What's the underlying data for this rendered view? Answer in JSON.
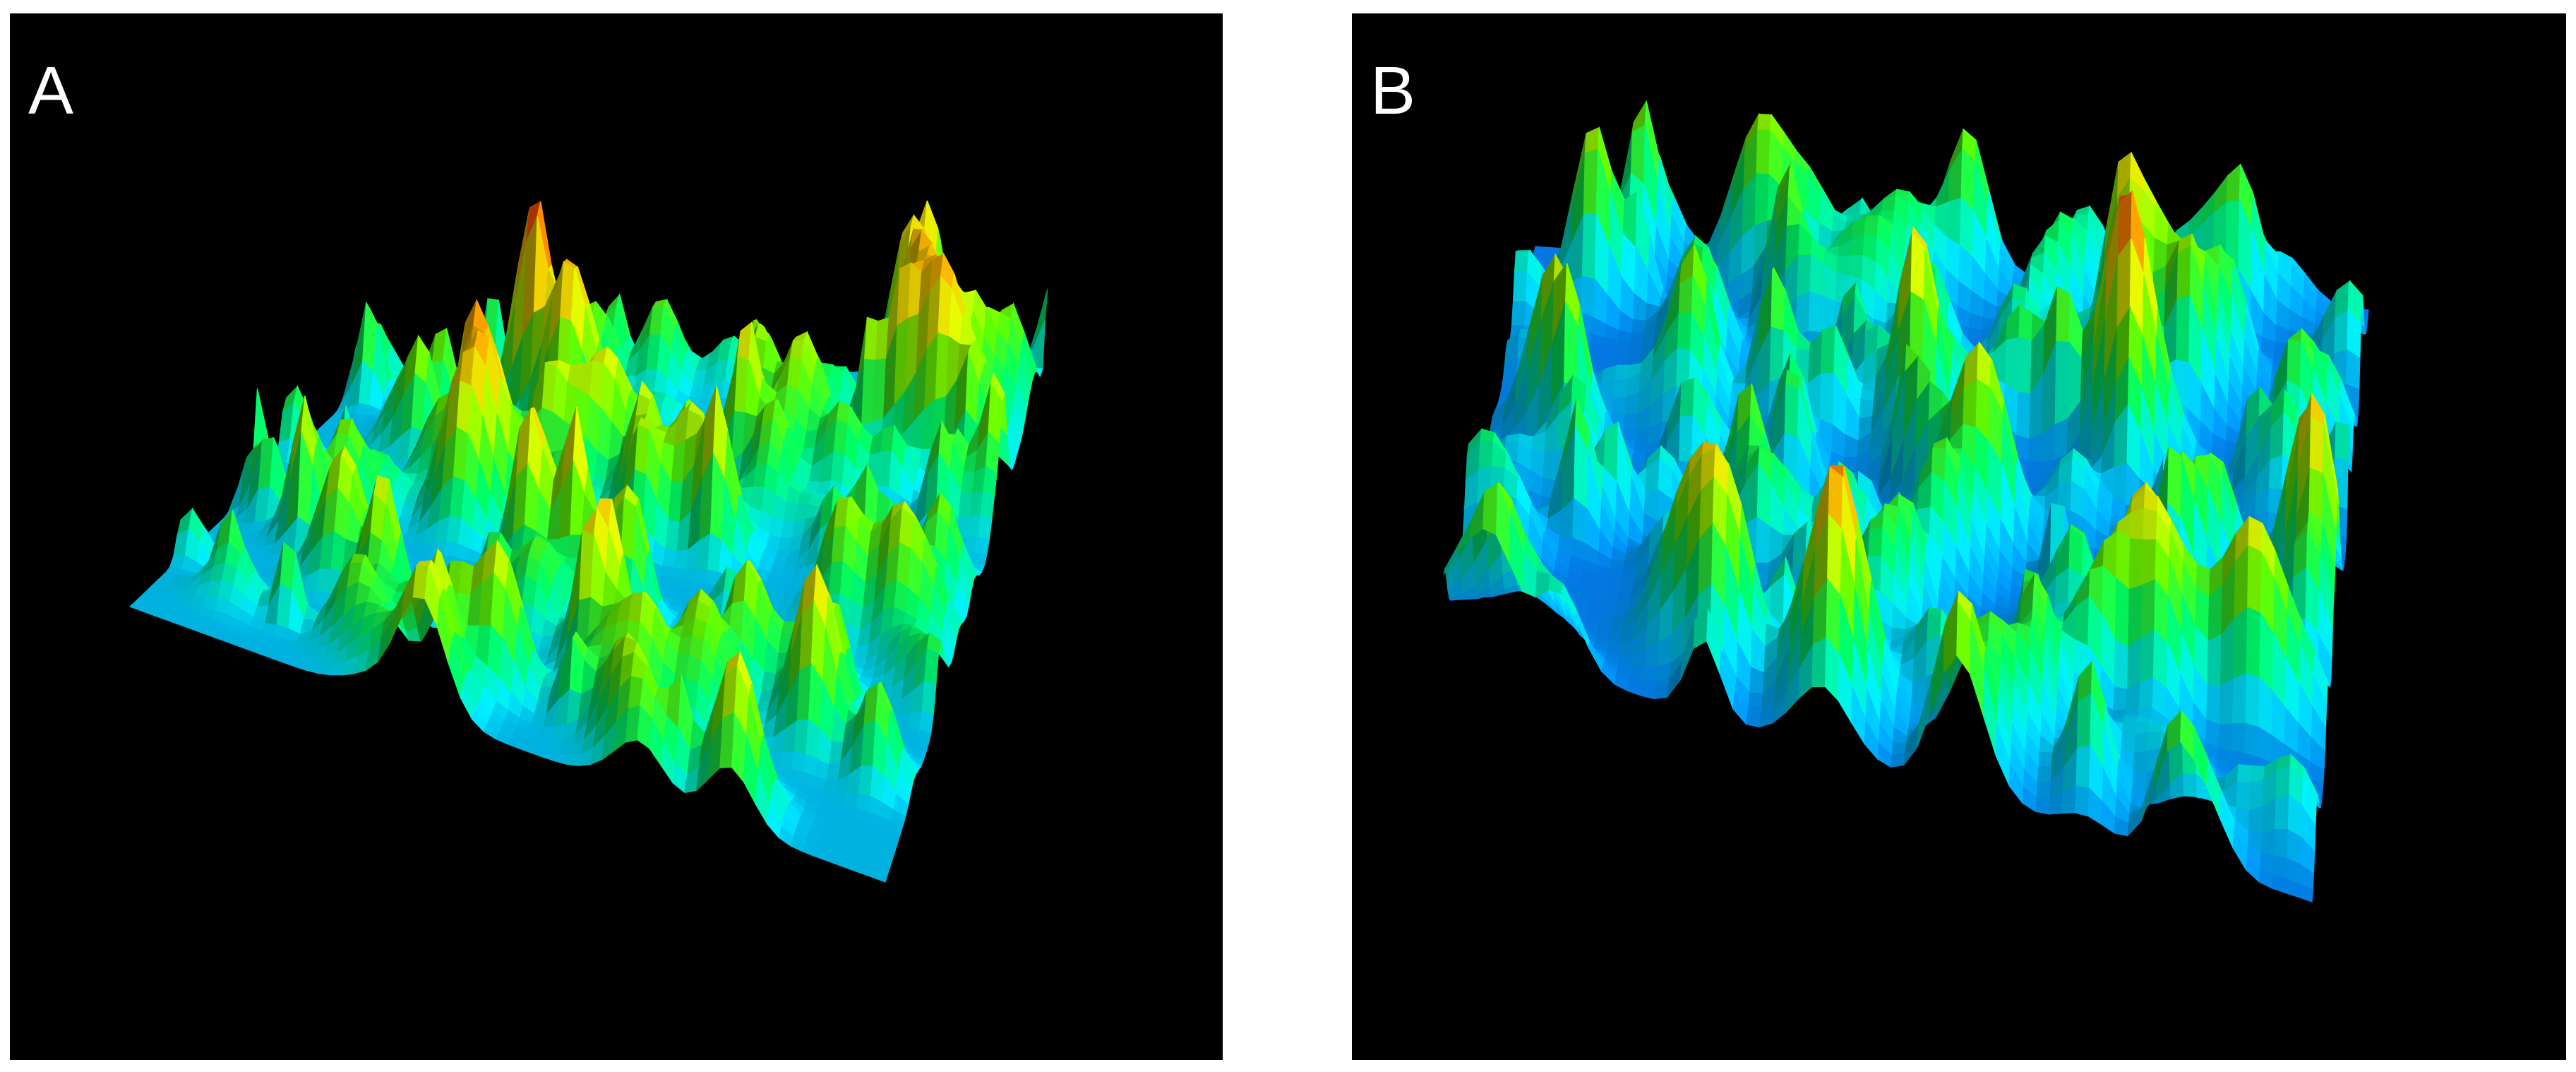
{
  "panels": [
    {
      "label": "A"
    },
    {
      "label": "B"
    }
  ],
  "colormap": [
    "#1a2bff",
    "#0099ff",
    "#00f2ff",
    "#00ff66",
    "#66ff00",
    "#e6ff00",
    "#ffb300",
    "#ff2a00"
  ]
}
